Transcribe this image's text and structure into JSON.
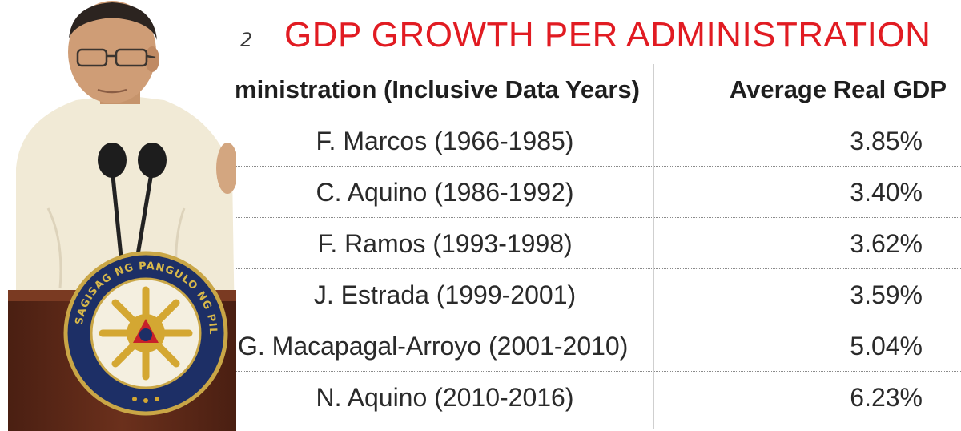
{
  "photo": {
    "seal_text": "SAGISAG NG PANGULO NG PILIPINAS"
  },
  "table": {
    "figure_number": "2",
    "title": "GDP GROWTH PER ADMINISTRATION",
    "headers": {
      "administration": "ministration (Inclusive Data Years)",
      "average_gdp": "Average Real GDP"
    },
    "rows": [
      {
        "administration": "F. Marcos (1966-1985)",
        "gdp": "3.85%"
      },
      {
        "administration": "C. Aquino (1986-1992)",
        "gdp": "3.40%"
      },
      {
        "administration": "F. Ramos (1993-1998)",
        "gdp": "3.62%"
      },
      {
        "administration": "J. Estrada (1999-2001)",
        "gdp": "3.59%"
      },
      {
        "administration": "G. Macapagal-Arroyo (2001-2010)",
        "gdp": "5.04%"
      },
      {
        "administration": "N. Aquino (2010-2016)",
        "gdp": "6.23%"
      }
    ],
    "colors": {
      "title": "#e11b22",
      "text": "#2a2a2a"
    }
  }
}
